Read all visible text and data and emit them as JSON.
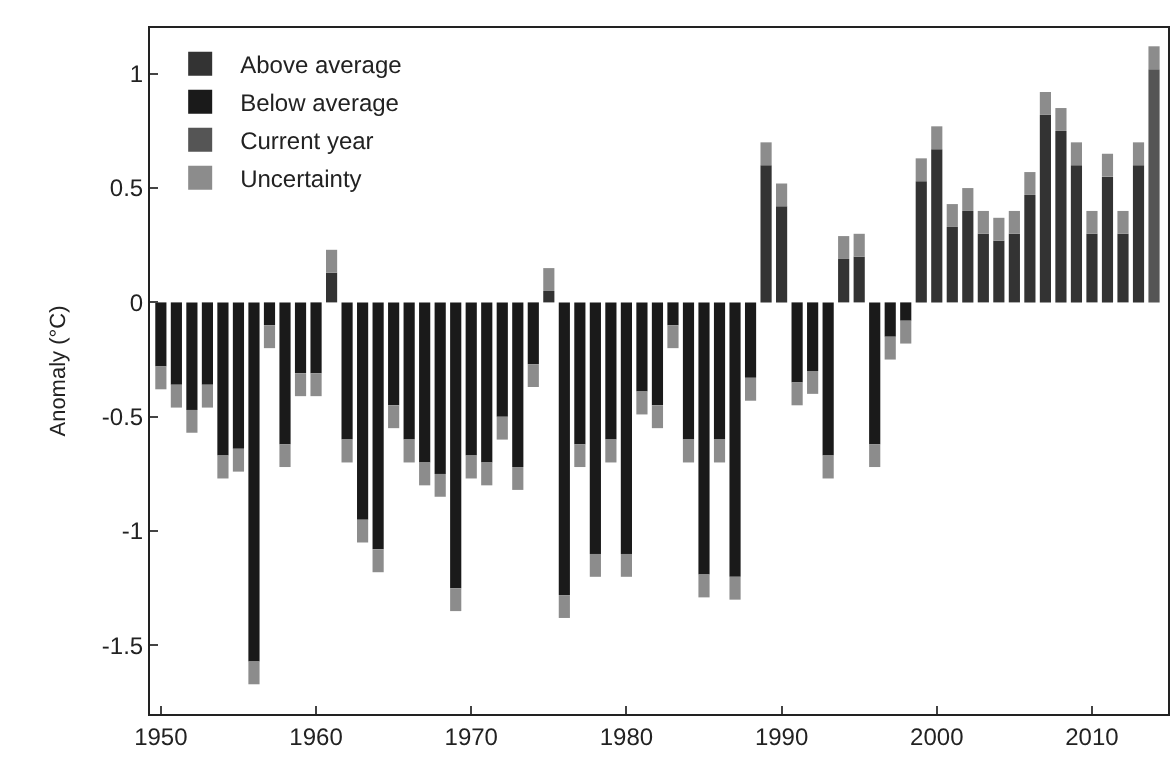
{
  "chart_data": {
    "type": "bar",
    "ylabel": "Anomaly (°C)",
    "x": [
      1950,
      1951,
      1952,
      1953,
      1954,
      1955,
      1956,
      1957,
      1958,
      1959,
      1960,
      1961,
      1962,
      1963,
      1964,
      1965,
      1966,
      1967,
      1968,
      1969,
      1970,
      1971,
      1972,
      1973,
      1974,
      1975,
      1976,
      1977,
      1978,
      1979,
      1980,
      1981,
      1982,
      1983,
      1984,
      1985,
      1986,
      1987,
      1988,
      1989,
      1990,
      1991,
      1992,
      1993,
      1994,
      1995,
      1996,
      1997,
      1998,
      1999,
      2000,
      2001,
      2002,
      2003,
      2004,
      2005,
      2006,
      2007,
      2008,
      2009,
      2010,
      2011,
      2012,
      2013,
      2014
    ],
    "series": [
      {
        "name": "Uncertainty",
        "color": "#8c8c8c",
        "base": [
          -0.28,
          -0.36,
          -0.47,
          -0.36,
          -0.67,
          -0.64,
          -1.57,
          -0.1,
          -0.62,
          -0.31,
          -0.31,
          0.13,
          -0.6,
          -0.95,
          -1.08,
          -0.45,
          -0.6,
          -0.7,
          -0.75,
          -1.25,
          -0.67,
          -0.7,
          -0.5,
          -0.72,
          -0.27,
          0.05,
          -1.28,
          -0.62,
          -1.1,
          -0.6,
          -1.1,
          -0.39,
          -0.45,
          -0.1,
          -0.6,
          -1.19,
          -0.6,
          -1.2,
          -0.33,
          0.6,
          0.42,
          -0.35,
          -0.3,
          -0.67,
          0.19,
          0.2,
          -0.62,
          -0.15,
          -0.08,
          0.53,
          0.67,
          0.33,
          0.4,
          0.3,
          0.27,
          0.3,
          0.47,
          0.82,
          0.75,
          0.6,
          0.3,
          0.55,
          0.3,
          0.6,
          1.02
        ],
        "values": [
          -0.1,
          -0.1,
          -0.1,
          -0.1,
          -0.1,
          -0.1,
          -0.1,
          -0.1,
          -0.1,
          -0.1,
          -0.1,
          0.1,
          -0.1,
          -0.1,
          -0.1,
          -0.1,
          -0.1,
          -0.1,
          -0.1,
          -0.1,
          -0.1,
          -0.1,
          -0.1,
          -0.1,
          -0.1,
          0.1,
          -0.1,
          -0.1,
          -0.1,
          -0.1,
          -0.1,
          -0.1,
          -0.1,
          -0.1,
          -0.1,
          -0.1,
          -0.1,
          -0.1,
          -0.1,
          0.1,
          0.1,
          -0.1,
          -0.1,
          -0.1,
          0.1,
          0.1,
          -0.1,
          -0.1,
          -0.1,
          0.1,
          0.1,
          0.1,
          0.1,
          0.1,
          0.1,
          0.1,
          0.1,
          0.1,
          0.1,
          0.1,
          0.1,
          0.1,
          0.1,
          0.1,
          0.1
        ]
      },
      {
        "name": "Above average",
        "color": "#333333",
        "values": [
          null,
          null,
          null,
          null,
          null,
          null,
          null,
          null,
          null,
          null,
          null,
          0.13,
          null,
          null,
          null,
          null,
          null,
          null,
          null,
          null,
          null,
          null,
          null,
          null,
          null,
          0.05,
          null,
          null,
          null,
          null,
          null,
          null,
          null,
          null,
          null,
          null,
          null,
          null,
          null,
          0.6,
          0.42,
          null,
          null,
          null,
          0.19,
          0.2,
          null,
          null,
          null,
          0.53,
          0.67,
          0.33,
          0.4,
          0.3,
          0.27,
          0.3,
          0.47,
          0.82,
          0.75,
          0.6,
          0.3,
          0.55,
          0.3,
          0.6,
          null
        ]
      },
      {
        "name": "Below average",
        "color": "#1a1a1a",
        "values": [
          -0.28,
          -0.36,
          -0.47,
          -0.36,
          -0.67,
          -0.64,
          -1.57,
          -0.1,
          -0.62,
          -0.31,
          -0.31,
          null,
          -0.6,
          -0.95,
          -1.08,
          -0.45,
          -0.6,
          -0.7,
          -0.75,
          -1.25,
          -0.67,
          -0.7,
          -0.5,
          -0.72,
          -0.27,
          null,
          -1.28,
          -0.62,
          -1.1,
          -0.6,
          -1.1,
          -0.39,
          -0.45,
          -0.1,
          -0.6,
          -1.19,
          -0.6,
          -1.2,
          -0.33,
          null,
          null,
          -0.35,
          -0.3,
          -0.67,
          null,
          null,
          -0.62,
          -0.15,
          -0.08,
          null,
          null,
          null,
          null,
          null,
          null,
          null,
          null,
          null,
          null,
          null,
          null,
          null,
          null,
          null,
          null
        ]
      },
      {
        "name": "Current year",
        "color": "#555555",
        "values": [
          null,
          null,
          null,
          null,
          null,
          null,
          null,
          null,
          null,
          null,
          null,
          null,
          null,
          null,
          null,
          null,
          null,
          null,
          null,
          null,
          null,
          null,
          null,
          null,
          null,
          null,
          null,
          null,
          null,
          null,
          null,
          null,
          null,
          null,
          null,
          null,
          null,
          null,
          null,
          null,
          null,
          null,
          null,
          null,
          null,
          null,
          null,
          null,
          null,
          null,
          null,
          null,
          null,
          null,
          null,
          null,
          null,
          null,
          null,
          null,
          null,
          null,
          null,
          null,
          1.02
        ]
      }
    ],
    "xlim": [
      1949.3,
      2014.9
    ],
    "ylim": [
      -1.8,
      1.2
    ],
    "xticks": [
      1950,
      1960,
      1970,
      1980,
      1990,
      2000,
      2010
    ],
    "yticks": [
      {
        "value": -1.5,
        "label": "-1.5"
      },
      {
        "value": -1,
        "label": "-1"
      },
      {
        "value": -0.5,
        "label": "-0.5"
      },
      0,
      0.5,
      1
    ],
    "legend": "top left"
  }
}
